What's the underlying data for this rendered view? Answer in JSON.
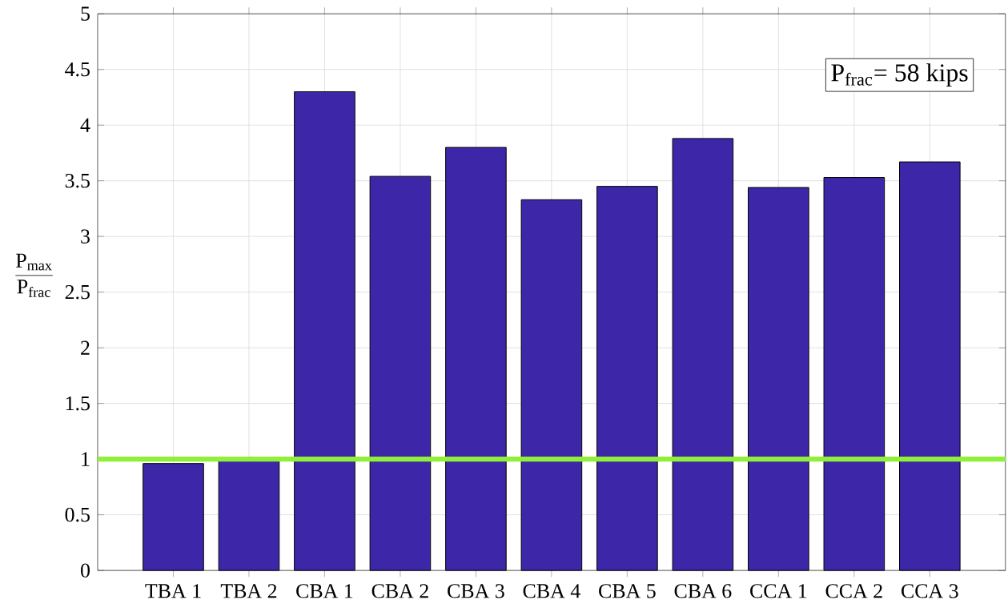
{
  "chart_data": {
    "type": "bar",
    "ylabel": "\\frac{\\mathrm{P_{max}}}{\\mathrm{P_{frac}}}",
    "categories": [
      "TBA 1",
      "TBA 2",
      "CBA 1",
      "CBA 2",
      "CBA 3",
      "CBA 4",
      "CBA 5",
      "CBA 6",
      "CCA 1",
      "CCA 2",
      "CCA 3"
    ],
    "values": [
      0.96,
      0.99,
      4.3,
      3.54,
      3.8,
      3.33,
      3.45,
      3.88,
      3.44,
      3.53,
      3.67
    ],
    "color": "#3d27a8",
    "ylim": [
      0,
      5
    ],
    "yticks": [
      0,
      0.5,
      1,
      1.5,
      2,
      2.5,
      3,
      3.5,
      4,
      4.5,
      5
    ],
    "grid": true,
    "ref_lines": [
      {
        "axis": "y",
        "value": 1,
        "color": "#8ff03a"
      }
    ],
    "annotations": [
      "P$_{frac}$= 58 kips"
    ]
  }
}
